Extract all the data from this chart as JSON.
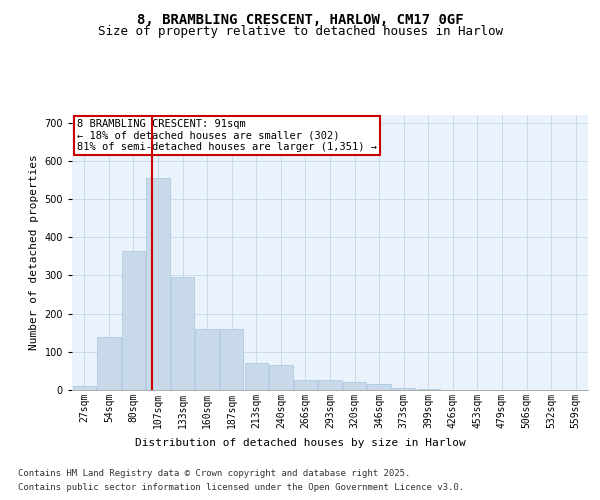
{
  "title1": "8, BRAMBLING CRESCENT, HARLOW, CM17 0GF",
  "title2": "Size of property relative to detached houses in Harlow",
  "xlabel": "Distribution of detached houses by size in Harlow",
  "ylabel": "Number of detached properties",
  "bin_labels": [
    "27sqm",
    "54sqm",
    "80sqm",
    "107sqm",
    "133sqm",
    "160sqm",
    "187sqm",
    "213sqm",
    "240sqm",
    "266sqm",
    "293sqm",
    "320sqm",
    "346sqm",
    "373sqm",
    "399sqm",
    "426sqm",
    "453sqm",
    "479sqm",
    "506sqm",
    "532sqm",
    "559sqm"
  ],
  "bar_heights": [
    10,
    140,
    365,
    555,
    295,
    160,
    160,
    70,
    65,
    25,
    25,
    20,
    15,
    5,
    2,
    1,
    0,
    0,
    0,
    0,
    0
  ],
  "bar_color": "#c8daea",
  "bar_edgecolor": "#a8c4dc",
  "grid_color": "#c8daea",
  "background_color": "#eaf2fb",
  "vline_x": 2.75,
  "vline_color": "#cc0000",
  "annotation_text": "8 BRAMBLING CRESCENT: 91sqm\n← 18% of detached houses are smaller (302)\n81% of semi-detached houses are larger (1,351) →",
  "annotation_box_color": "#cc0000",
  "ylim": [
    0,
    720
  ],
  "yticks": [
    0,
    100,
    200,
    300,
    400,
    500,
    600,
    700
  ],
  "footnote1": "Contains HM Land Registry data © Crown copyright and database right 2025.",
  "footnote2": "Contains public sector information licensed under the Open Government Licence v3.0.",
  "title1_fontsize": 10,
  "title2_fontsize": 9,
  "xlabel_fontsize": 8,
  "ylabel_fontsize": 8,
  "tick_fontsize": 7,
  "annot_fontsize": 7.5,
  "footnote_fontsize": 6.5
}
